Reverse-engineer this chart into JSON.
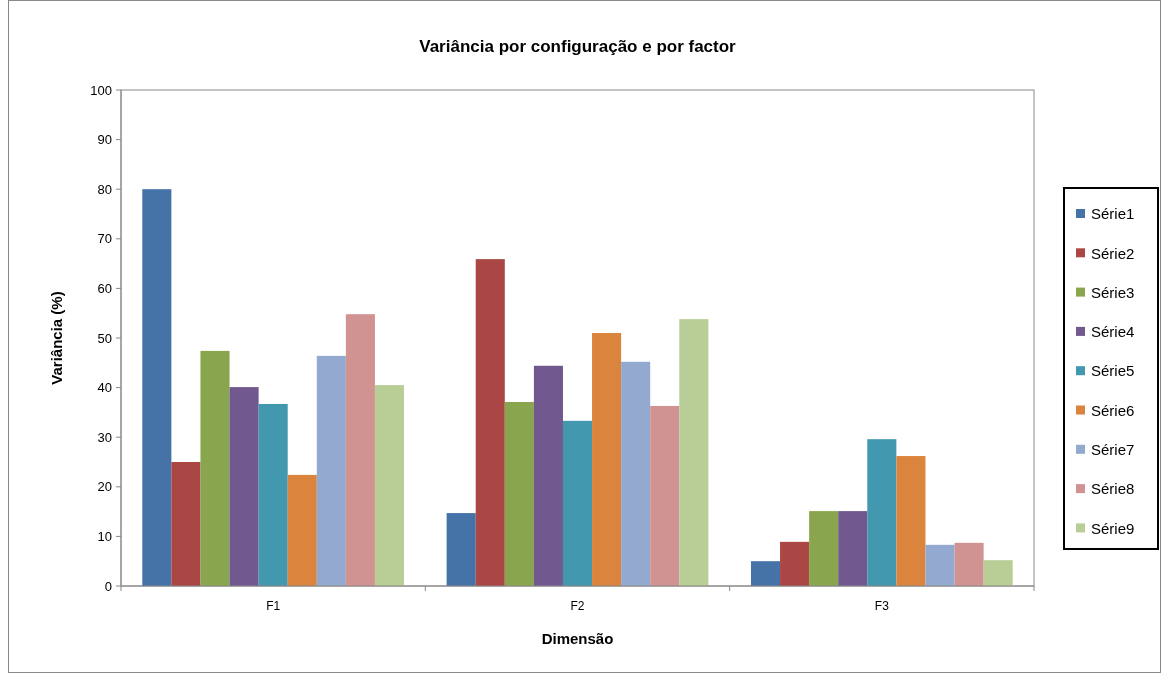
{
  "chart_data": {
    "type": "bar",
    "title": "Variância por configuração e por factor",
    "xlabel": "Dimensão",
    "ylabel": "Variância (%)",
    "categories": [
      "F1",
      "F2",
      "F3"
    ],
    "ylim": [
      0,
      100
    ],
    "yticks": [
      0,
      10,
      20,
      30,
      40,
      50,
      60,
      70,
      80,
      90,
      100
    ],
    "grid": false,
    "legend": "right",
    "series": [
      {
        "name": "Série1",
        "color": "#4572a7",
        "values": [
          80,
          14.7,
          5
        ]
      },
      {
        "name": "Série2",
        "color": "#aa4643",
        "values": [
          25,
          65.9,
          8.9
        ]
      },
      {
        "name": "Série3",
        "color": "#89a54e",
        "values": [
          47.4,
          37.1,
          15.1
        ]
      },
      {
        "name": "Série4",
        "color": "#71588f",
        "values": [
          40.1,
          44.4,
          15.1
        ]
      },
      {
        "name": "Série5",
        "color": "#4198af",
        "values": [
          36.7,
          33.3,
          29.6
        ]
      },
      {
        "name": "Série6",
        "color": "#db843d",
        "values": [
          22.4,
          51,
          26.2
        ]
      },
      {
        "name": "Série7",
        "color": "#93a9cf",
        "values": [
          46.4,
          45.2,
          8.3
        ]
      },
      {
        "name": "Série8",
        "color": "#d19392",
        "values": [
          54.8,
          36.3,
          8.7
        ]
      },
      {
        "name": "Série9",
        "color": "#b9cd96",
        "values": [
          40.5,
          53.8,
          5.2
        ]
      }
    ]
  }
}
